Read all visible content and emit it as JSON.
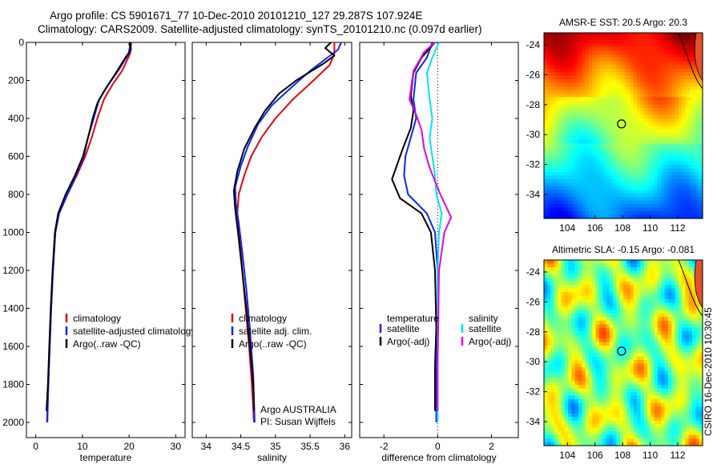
{
  "title": {
    "line1": "Argo profile: CS 5901671_77 10-Dec-2010 20101210_127 29.287S 107.924E",
    "line2": "Climatology: CARS2009. Satellite-adjusted climatology: synTS_20101210.nc (0.097d earlier)"
  },
  "credit": "CSIRO 16-Dec-2010 10:30:45",
  "colors": {
    "climatology": "#e8000b",
    "satellite": "#0b24fb",
    "argo": "#000000",
    "sat_diff_salt": "#00e5ee",
    "argo_diff_salt": "#e600e6"
  },
  "chart_data": [
    {
      "type": "line",
      "id": "temperature",
      "xlabel": "temperature",
      "ylabel": "",
      "xlim": [
        -2,
        32
      ],
      "ylim": [
        0,
        2080
      ],
      "y_reversed": true,
      "xticks": [
        0,
        10,
        20,
        30
      ],
      "yticks": [
        0,
        200,
        400,
        600,
        800,
        1000,
        1200,
        1400,
        1600,
        1800,
        2000
      ],
      "legend_position": "lower-middle",
      "series": [
        {
          "name": "climatology",
          "color": "#e8000b",
          "points": [
            [
              20.5,
              0
            ],
            [
              20.2,
              60
            ],
            [
              18.5,
              150
            ],
            [
              16.5,
              220
            ],
            [
              14.6,
              300
            ],
            [
              13.2,
              400
            ],
            [
              12,
              500
            ],
            [
              10.6,
              600
            ],
            [
              8.8,
              700
            ],
            [
              6.8,
              800
            ],
            [
              5,
              900
            ],
            [
              4.2,
              1000
            ],
            [
              3.7,
              1200
            ],
            [
              3.3,
              1400
            ],
            [
              3,
              1600
            ],
            [
              2.7,
              1800
            ],
            [
              2.5,
              2000
            ]
          ]
        },
        {
          "name": "satellite-adjusted climatology",
          "color": "#0b24fb",
          "points": [
            [
              20.3,
              0
            ],
            [
              19.9,
              60
            ],
            [
              17.9,
              140
            ],
            [
              15.6,
              220
            ],
            [
              13.6,
              300
            ],
            [
              12.4,
              400
            ],
            [
              11.2,
              500
            ],
            [
              10.3,
              600
            ],
            [
              8.6,
              700
            ],
            [
              6.8,
              800
            ],
            [
              5,
              900
            ],
            [
              4.2,
              1000
            ],
            [
              3.7,
              1200
            ],
            [
              3.3,
              1400
            ],
            [
              3,
              1600
            ],
            [
              2.7,
              1800
            ],
            [
              2.4,
              2000
            ]
          ]
        },
        {
          "name": "Argo(..raw -QC)",
          "color": "#000000",
          "points": [
            [
              20.2,
              0
            ],
            [
              20.4,
              40
            ],
            [
              19.2,
              80
            ],
            [
              17.2,
              160
            ],
            [
              14.8,
              250
            ],
            [
              13.2,
              320
            ],
            [
              12.2,
              400
            ],
            [
              11.2,
              500
            ],
            [
              10.1,
              600
            ],
            [
              8.4,
              700
            ],
            [
              6.4,
              800
            ],
            [
              4.8,
              900
            ],
            [
              4.1,
              1000
            ],
            [
              3.6,
              1200
            ],
            [
              3.2,
              1400
            ],
            [
              2.9,
              1600
            ],
            [
              2.6,
              1800
            ],
            [
              2.3,
              1940
            ]
          ]
        }
      ]
    },
    {
      "type": "line",
      "id": "salinity",
      "xlabel": "salinity",
      "ylabel": "",
      "xlim": [
        33.8,
        36.1
      ],
      "ylim": [
        0,
        2080
      ],
      "y_reversed": true,
      "xticks": [
        34,
        34.5,
        35,
        35.5,
        36
      ],
      "yticks": [
        0,
        200,
        400,
        600,
        800,
        1000,
        1200,
        1400,
        1600,
        1800,
        2000
      ],
      "legend_position": "lower-middle",
      "annotation": [
        "Argo AUSTRALIA",
        "PI: Susan Wijffels"
      ],
      "series": [
        {
          "name": "climatology",
          "color": "#e8000b",
          "points": [
            [
              35.85,
              0
            ],
            [
              35.85,
              60
            ],
            [
              35.78,
              120
            ],
            [
              35.55,
              200
            ],
            [
              35.25,
              300
            ],
            [
              35.0,
              400
            ],
            [
              34.8,
              500
            ],
            [
              34.65,
              600
            ],
            [
              34.55,
              700
            ],
            [
              34.47,
              800
            ],
            [
              34.45,
              900
            ],
            [
              34.48,
              1000
            ],
            [
              34.52,
              1200
            ],
            [
              34.57,
              1400
            ],
            [
              34.62,
              1600
            ],
            [
              34.66,
              1800
            ],
            [
              34.69,
              2000
            ]
          ]
        },
        {
          "name": "satellite adj. clim.",
          "color": "#0b24fb",
          "points": [
            [
              35.95,
              0
            ],
            [
              35.9,
              40
            ],
            [
              35.75,
              80
            ],
            [
              35.5,
              150
            ],
            [
              35.25,
              230
            ],
            [
              34.95,
              330
            ],
            [
              34.75,
              430
            ],
            [
              34.6,
              550
            ],
            [
              34.5,
              650
            ],
            [
              34.42,
              760
            ],
            [
              34.43,
              850
            ],
            [
              34.47,
              950
            ],
            [
              34.52,
              1100
            ],
            [
              34.58,
              1300
            ],
            [
              34.63,
              1500
            ],
            [
              34.68,
              1750
            ],
            [
              34.7,
              2000
            ]
          ]
        },
        {
          "name": "Argo(..raw -QC)",
          "color": "#000000",
          "points": [
            [
              35.8,
              0
            ],
            [
              35.72,
              30
            ],
            [
              35.85,
              70
            ],
            [
              35.7,
              110
            ],
            [
              35.3,
              200
            ],
            [
              35.05,
              270
            ],
            [
              34.85,
              360
            ],
            [
              34.7,
              450
            ],
            [
              34.55,
              560
            ],
            [
              34.45,
              680
            ],
            [
              34.4,
              780
            ],
            [
              34.42,
              880
            ],
            [
              34.46,
              1000
            ],
            [
              34.52,
              1200
            ],
            [
              34.58,
              1400
            ],
            [
              34.63,
              1600
            ],
            [
              34.68,
              1800
            ],
            [
              34.69,
              1940
            ]
          ]
        }
      ]
    },
    {
      "type": "line",
      "id": "difference",
      "xlabel": "difference from climatology",
      "ylabel": "",
      "xlim": [
        -2.9,
        3.0
      ],
      "ylim": [
        0,
        2080
      ],
      "y_reversed": true,
      "xticks": [
        -2,
        0,
        2
      ],
      "yticks": [
        0,
        200,
        400,
        600,
        800,
        1000,
        1200,
        1400,
        1600,
        1800,
        2000
      ],
      "zero_line": "dotted",
      "legend_position": "lower-middle",
      "legend_groups": [
        "temperature",
        "salinity"
      ],
      "series": [
        {
          "name": "satellite",
          "group": "temperature",
          "color": "#0b24fb",
          "points": [
            [
              -0.2,
              0
            ],
            [
              -0.4,
              80
            ],
            [
              -0.8,
              160
            ],
            [
              -0.9,
              300
            ],
            [
              -0.8,
              400
            ],
            [
              -1.0,
              500
            ],
            [
              -1.2,
              600
            ],
            [
              -1.25,
              700
            ],
            [
              -1.1,
              800
            ],
            [
              -0.4,
              900
            ],
            [
              -0.1,
              1000
            ],
            [
              0,
              1200
            ],
            [
              0,
              1500
            ],
            [
              -0.05,
              1700
            ],
            [
              -0.05,
              2000
            ]
          ]
        },
        {
          "name": "Argo(-adj)",
          "group": "temperature",
          "color": "#000000",
          "points": [
            [
              -0.1,
              0
            ],
            [
              -0.6,
              80
            ],
            [
              -0.9,
              160
            ],
            [
              -1.0,
              280
            ],
            [
              -0.9,
              360
            ],
            [
              -1.0,
              450
            ],
            [
              -1.3,
              560
            ],
            [
              -1.7,
              720
            ],
            [
              -1.4,
              820
            ],
            [
              -0.6,
              900
            ],
            [
              -0.25,
              1000
            ],
            [
              -0.1,
              1200
            ],
            [
              -0.05,
              1500
            ],
            [
              -0.1,
              1700
            ],
            [
              -0.1,
              1940
            ]
          ]
        },
        {
          "name": "satellite",
          "group": "salinity",
          "color": "#00e5ee",
          "points": [
            [
              0.05,
              0
            ],
            [
              -0.2,
              80
            ],
            [
              -0.4,
              160
            ],
            [
              -0.3,
              300
            ],
            [
              -0.2,
              400
            ],
            [
              -0.3,
              500
            ],
            [
              -0.2,
              600
            ],
            [
              -0.1,
              700
            ],
            [
              -0.05,
              800
            ],
            [
              0.15,
              900
            ],
            [
              0.05,
              1000
            ],
            [
              0,
              1200
            ],
            [
              0,
              1500
            ],
            [
              0,
              1700
            ],
            [
              0,
              2000
            ]
          ]
        },
        {
          "name": "Argo(-adj)",
          "group": "salinity",
          "color": "#e600e6",
          "points": [
            [
              -0.1,
              0
            ],
            [
              -0.5,
              50
            ],
            [
              -0.9,
              150
            ],
            [
              -1.05,
              300
            ],
            [
              -0.8,
              380
            ],
            [
              -0.6,
              460
            ],
            [
              -0.5,
              560
            ],
            [
              -0.3,
              660
            ],
            [
              0.1,
              800
            ],
            [
              0.5,
              920
            ],
            [
              0.25,
              1000
            ],
            [
              0.05,
              1200
            ],
            [
              0.02,
              1500
            ],
            [
              0,
              1700
            ],
            [
              0,
              1940
            ]
          ]
        }
      ]
    },
    {
      "type": "heatmap",
      "id": "sst_map",
      "title": "AMSR-E SST: 20.5 Argo: 20.3",
      "xlim": [
        102.3,
        113.8
      ],
      "ylim": [
        -35.6,
        -23.2
      ],
      "xticks": [
        104,
        106,
        108,
        110,
        112
      ],
      "yticks": [
        -24,
        -26,
        -28,
        -30,
        -32,
        -34
      ],
      "marker": {
        "lon": 107.924,
        "lat": -29.287
      }
    },
    {
      "type": "heatmap",
      "id": "sla_map",
      "title": "Altimetric SLA: -0.15 Argo: -0.081",
      "xlim": [
        102.3,
        113.8
      ],
      "ylim": [
        -35.6,
        -23.2
      ],
      "xticks": [
        104,
        106,
        108,
        110,
        112
      ],
      "yticks": [
        -24,
        -26,
        -28,
        -30,
        -32,
        -34
      ],
      "marker": {
        "lon": 107.924,
        "lat": -29.287
      }
    }
  ]
}
